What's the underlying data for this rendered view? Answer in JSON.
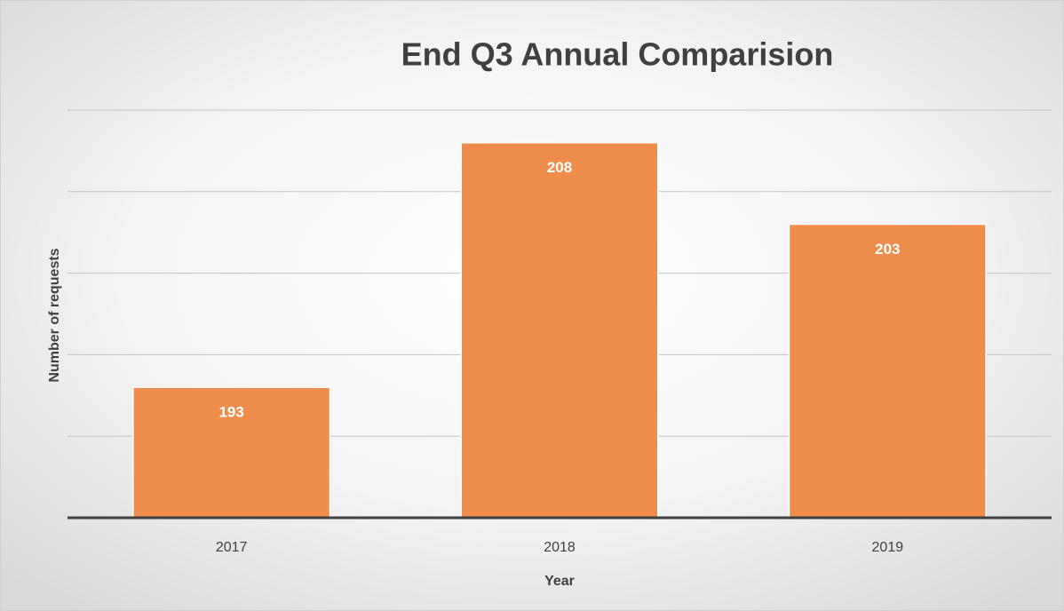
{
  "chart_data": {
    "type": "bar",
    "title": "End Q3 Annual Comparision",
    "x_label": "Year",
    "y_label": "Number of requests",
    "categories": [
      "2017",
      "2018",
      "2019"
    ],
    "values": [
      193,
      208,
      203
    ],
    "color": "#ee8d4c",
    "ylim": [
      185,
      210
    ],
    "yticks": [
      190,
      195,
      200,
      205,
      210
    ],
    "grid": true
  }
}
